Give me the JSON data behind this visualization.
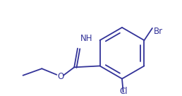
{
  "bg_color": "#ffffff",
  "line_color": "#333399",
  "text_color": "#333399",
  "label_Cl": "Cl",
  "label_Br": "Br",
  "label_O": "O",
  "label_NH": "NH",
  "line_width": 1.3,
  "font_size": 8.5
}
